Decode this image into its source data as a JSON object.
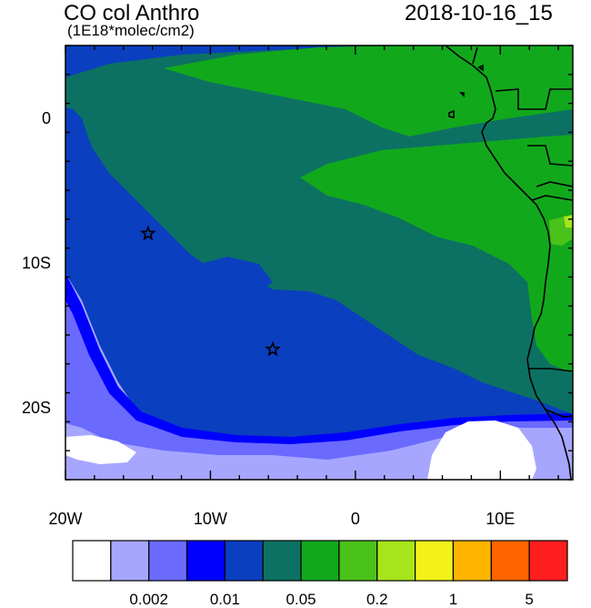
{
  "header": {
    "title": "CO col Anthro",
    "units": "(1E18*molec/cm2)",
    "timestamp": "2018-10-16_15"
  },
  "map": {
    "lon_range": [
      -20,
      15
    ],
    "lat_range": [
      -25,
      5
    ],
    "lat_labels": [
      {
        "lat": 0,
        "text": "0"
      },
      {
        "lat": -10,
        "text": "10S"
      },
      {
        "lat": -20,
        "text": "20S"
      }
    ],
    "lon_labels": [
      {
        "lon": -20,
        "text": "20W"
      },
      {
        "lon": -10,
        "text": "10W"
      },
      {
        "lon": 0,
        "text": "0"
      },
      {
        "lon": 10,
        "text": "10E"
      }
    ],
    "markers": [
      {
        "name": "star-marker-north",
        "lon": -14.3,
        "lat": -8.0
      },
      {
        "name": "star-marker-south",
        "lon": -5.7,
        "lat": -16.0
      }
    ]
  },
  "colorbar": {
    "colors": [
      "#ffffff",
      "#a6a6ff",
      "#6a6aff",
      "#0000ff",
      "#0a3fbf",
      "#0c7163",
      "#12a81c",
      "#4ac21a",
      "#a6e51c",
      "#f2f21a",
      "#ffb400",
      "#ff6400",
      "#ff1e1e"
    ],
    "labels": [
      {
        "boundary": 2,
        "text": "0.002"
      },
      {
        "boundary": 4,
        "text": "0.01"
      },
      {
        "boundary": 6,
        "text": "0.05"
      },
      {
        "boundary": 8,
        "text": "0.2"
      },
      {
        "boundary": 10,
        "text": "1"
      },
      {
        "boundary": 12,
        "text": "5"
      }
    ]
  }
}
